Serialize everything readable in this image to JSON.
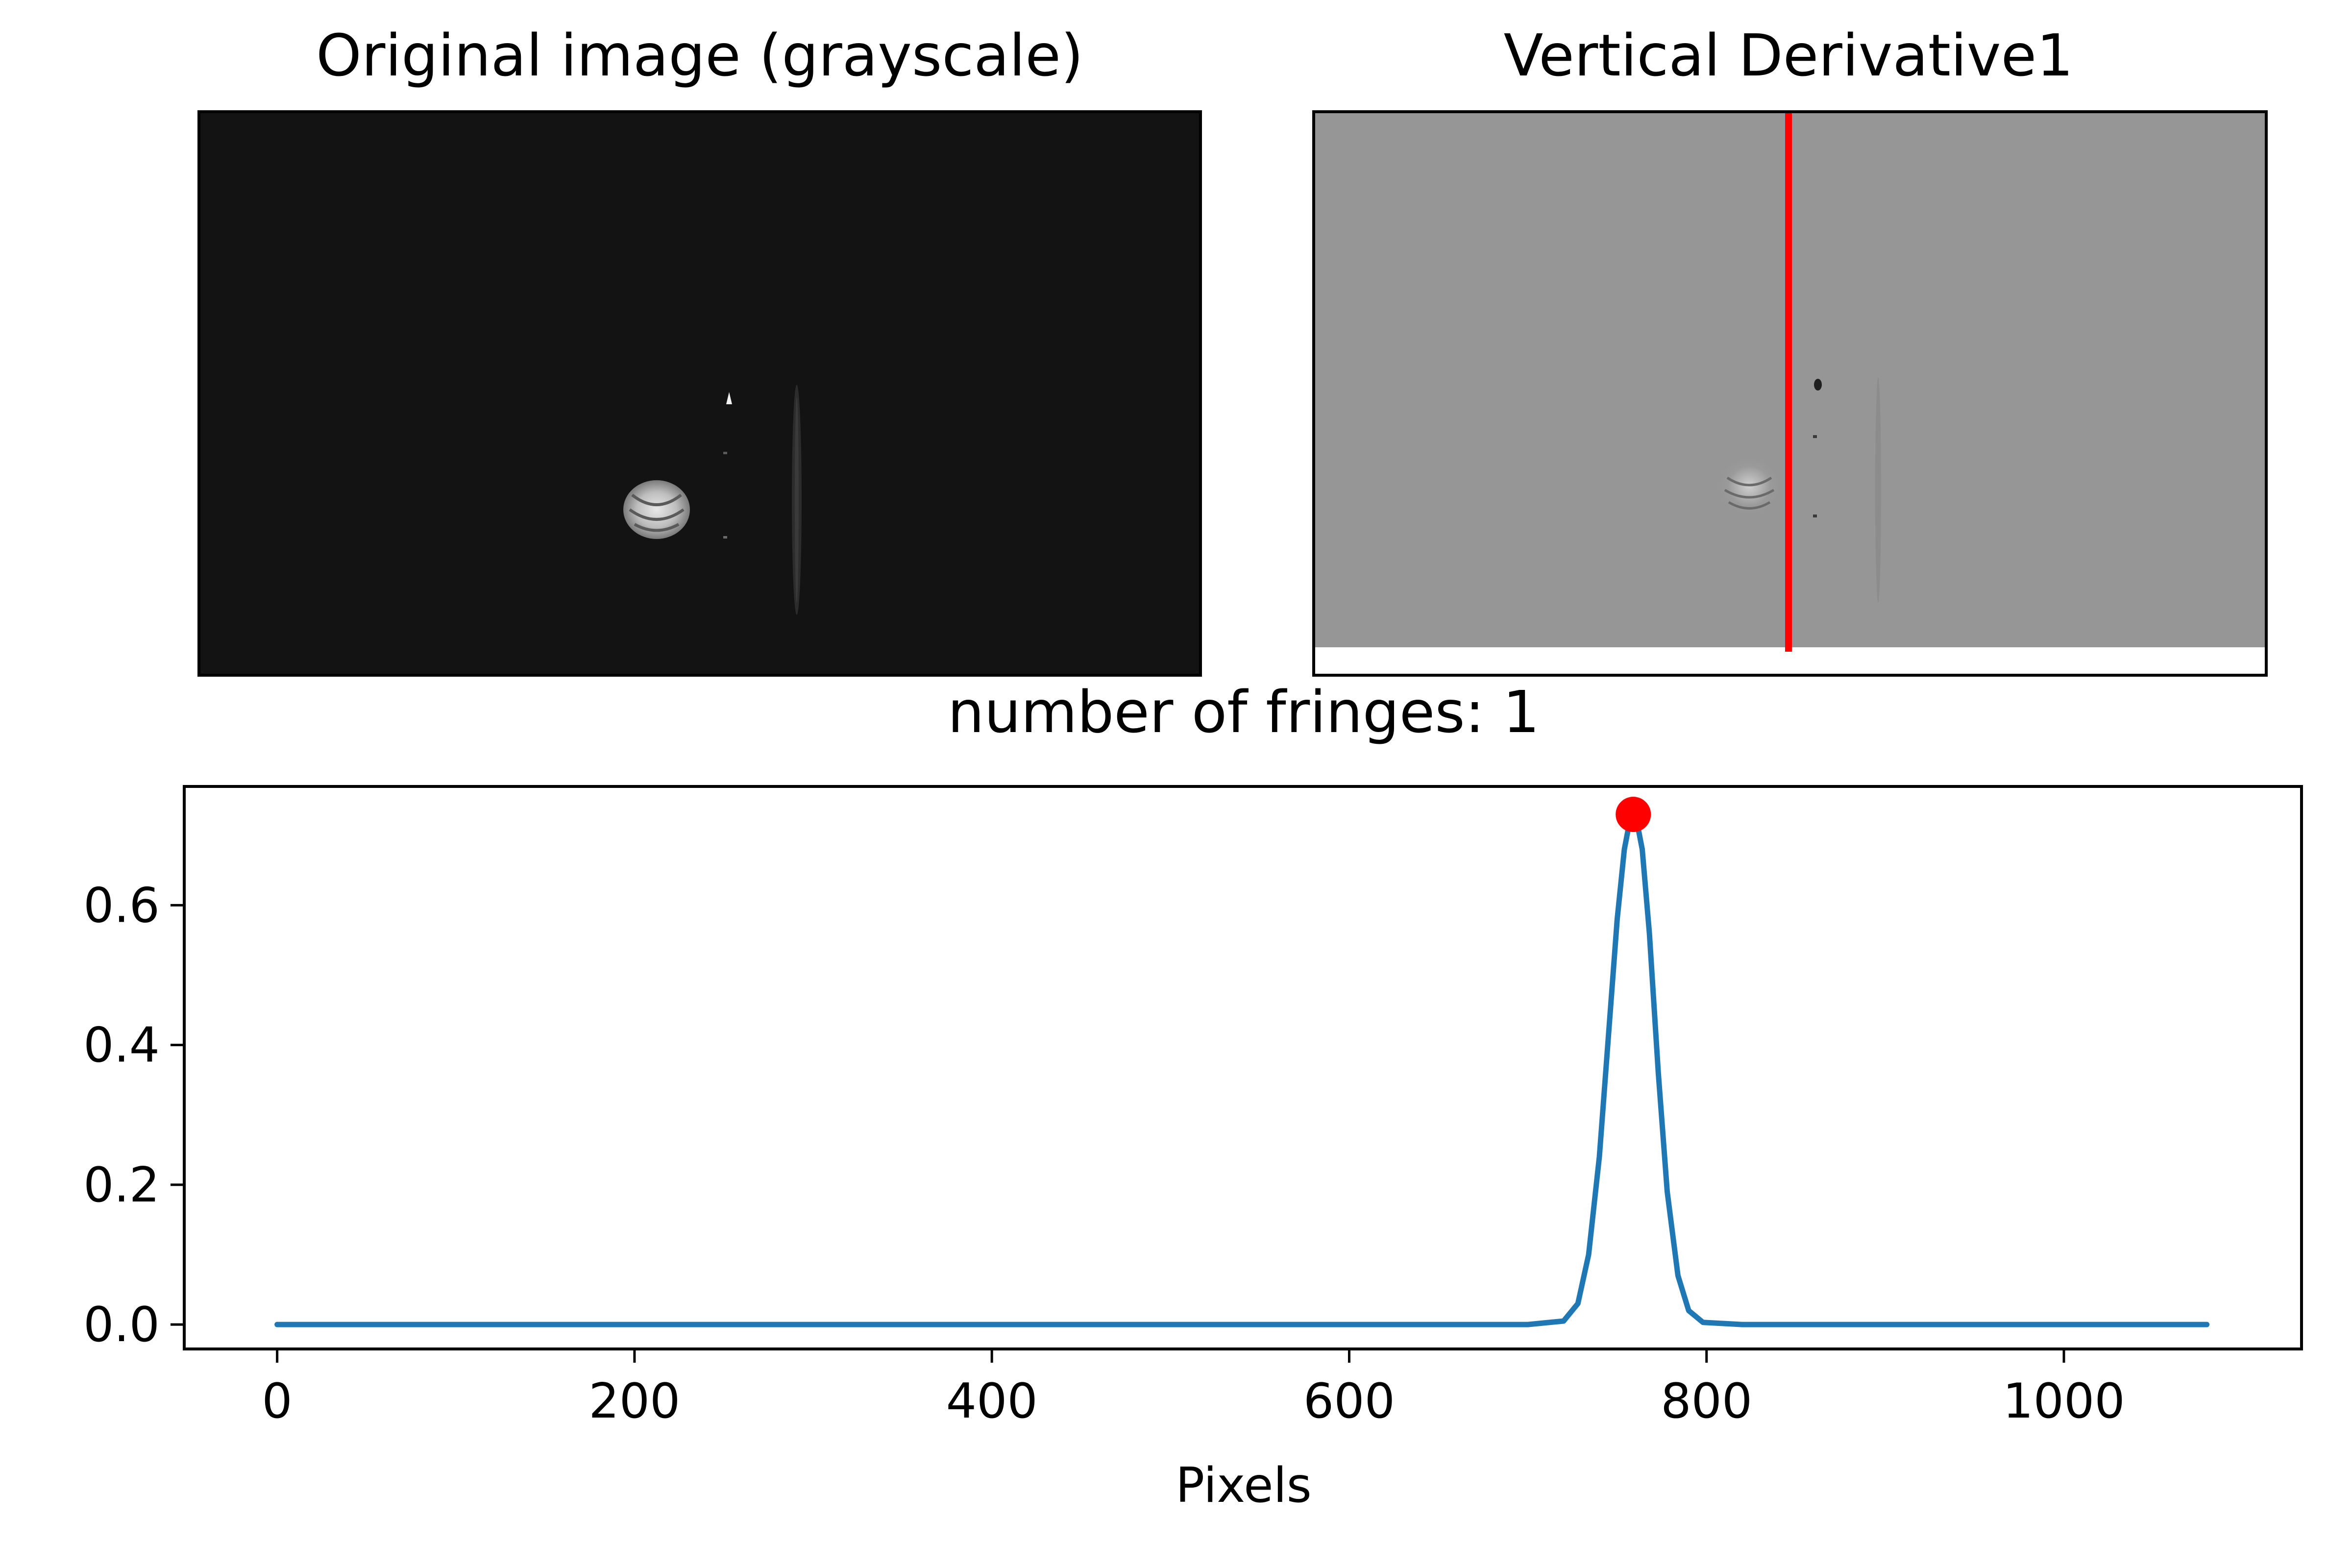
{
  "panels": {
    "original": {
      "title": "Original image (grayscale)"
    },
    "derivative": {
      "title": "Vertical Derivative1"
    }
  },
  "chart_data": {
    "type": "line",
    "title": "number of fringes: 1",
    "xlabel": "Pixels",
    "ylabel": "",
    "xlim": [
      -52,
      1133
    ],
    "ylim": [
      -0.035,
      0.77
    ],
    "x_ticks": [
      0,
      200,
      400,
      600,
      800,
      1000
    ],
    "x_tick_labels": [
      "0",
      "200",
      "400",
      "600",
      "800",
      "1000"
    ],
    "y_ticks": [
      0.0,
      0.2,
      0.4,
      0.6
    ],
    "y_tick_labels": [
      "0.0",
      "0.2",
      "0.4",
      "0.6"
    ],
    "grid": false,
    "series": [
      {
        "color": "#1f77b4",
        "x": [
          0,
          100,
          200,
          300,
          400,
          500,
          600,
          700,
          720,
          728,
          734,
          740,
          745,
          750,
          754,
          757,
          759,
          761,
          764,
          768,
          773,
          778,
          784,
          790,
          798,
          820,
          900,
          1000,
          1080
        ],
        "y": [
          0,
          0,
          0,
          0,
          0,
          0,
          0,
          0,
          0.005,
          0.03,
          0.1,
          0.24,
          0.41,
          0.58,
          0.68,
          0.72,
          0.73,
          0.72,
          0.68,
          0.56,
          0.36,
          0.19,
          0.07,
          0.02,
          0.003,
          0,
          0,
          0,
          0
        ]
      }
    ],
    "peaks": [
      {
        "x": 759,
        "y": 0.73,
        "color": "#ff0000"
      }
    ]
  },
  "colors": {
    "original_background": "#131313",
    "derivative_background": "#969696",
    "marker_line": "#ff0000",
    "line": "#1f77b4"
  }
}
